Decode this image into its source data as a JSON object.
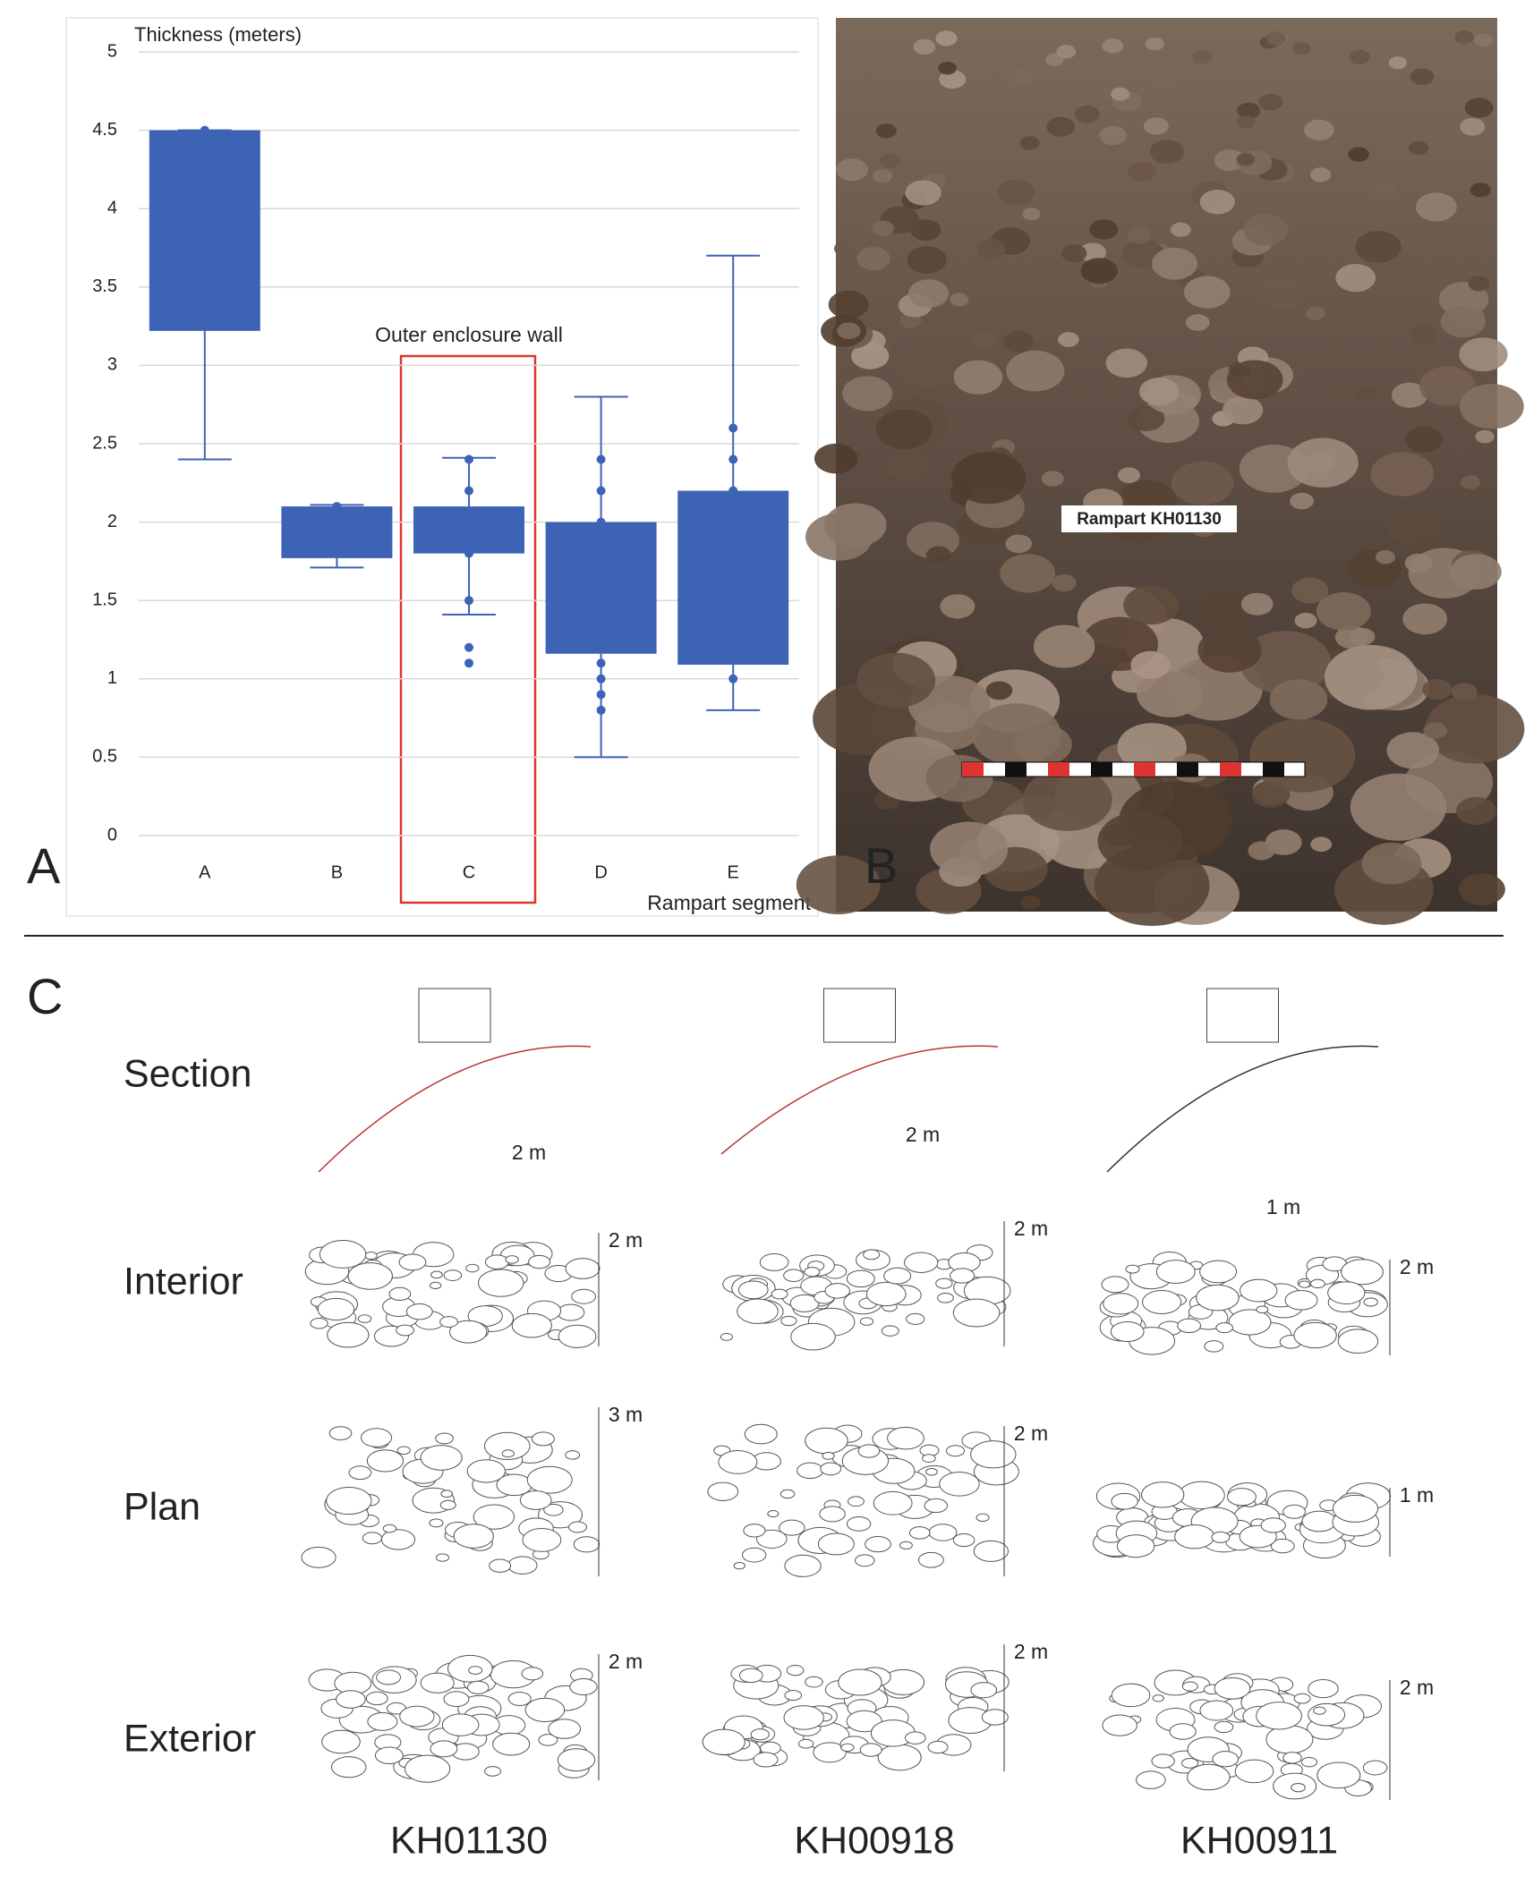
{
  "chart_data": {
    "type": "box",
    "y_label": "Thickness (meters)",
    "x_label": "Rampart segment",
    "annotation": "Outer enclosure wall",
    "categories": [
      "A",
      "B",
      "C",
      "D",
      "E"
    ],
    "color": "#3d63b5",
    "boxes": [
      {
        "low": 2.4,
        "q1": 3.22,
        "q3": 4.5,
        "high": 4.5,
        "points": [
          4.5,
          4.0
        ]
      },
      {
        "low": 1.71,
        "q1": 1.77,
        "q3": 2.1,
        "high": 2.11,
        "points": [
          2.1
        ]
      },
      {
        "low": 1.41,
        "q1": 1.8,
        "q3": 2.1,
        "high": 2.41,
        "points": [
          2.4,
          2.2,
          2.0,
          1.8,
          1.5,
          1.2,
          1.1
        ]
      },
      {
        "low": 0.5,
        "q1": 1.16,
        "q3": 2.0,
        "high": 2.8,
        "points": [
          2.4,
          2.2,
          2.0,
          1.1,
          1.0,
          0.9,
          0.8
        ]
      },
      {
        "low": 0.8,
        "q1": 1.09,
        "q3": 2.2,
        "high": 3.7,
        "points": [
          2.6,
          2.4,
          2.2,
          1.2,
          1.0
        ]
      }
    ],
    "ylim": [
      0,
      5
    ],
    "yticks": [
      0,
      0.5,
      1,
      1.5,
      2,
      2.5,
      3,
      3.5,
      4,
      4.5,
      5
    ],
    "grid": true
  },
  "panels": [
    "A",
    "B",
    "C"
  ],
  "photo": {
    "label": "Rampart KH01130"
  },
  "drawings": {
    "rows": [
      "Section",
      "Interior",
      "Plan",
      "Exterior"
    ],
    "columns": [
      "KH01130",
      "KH00918",
      "KH00911"
    ],
    "scales": [
      [
        "2 m",
        "2 m",
        "1 m"
      ],
      [
        "2 m",
        "2 m",
        "2 m"
      ],
      [
        "3 m",
        "2 m",
        "1 m"
      ],
      [
        "2 m",
        "2 m",
        "2 m"
      ]
    ]
  }
}
